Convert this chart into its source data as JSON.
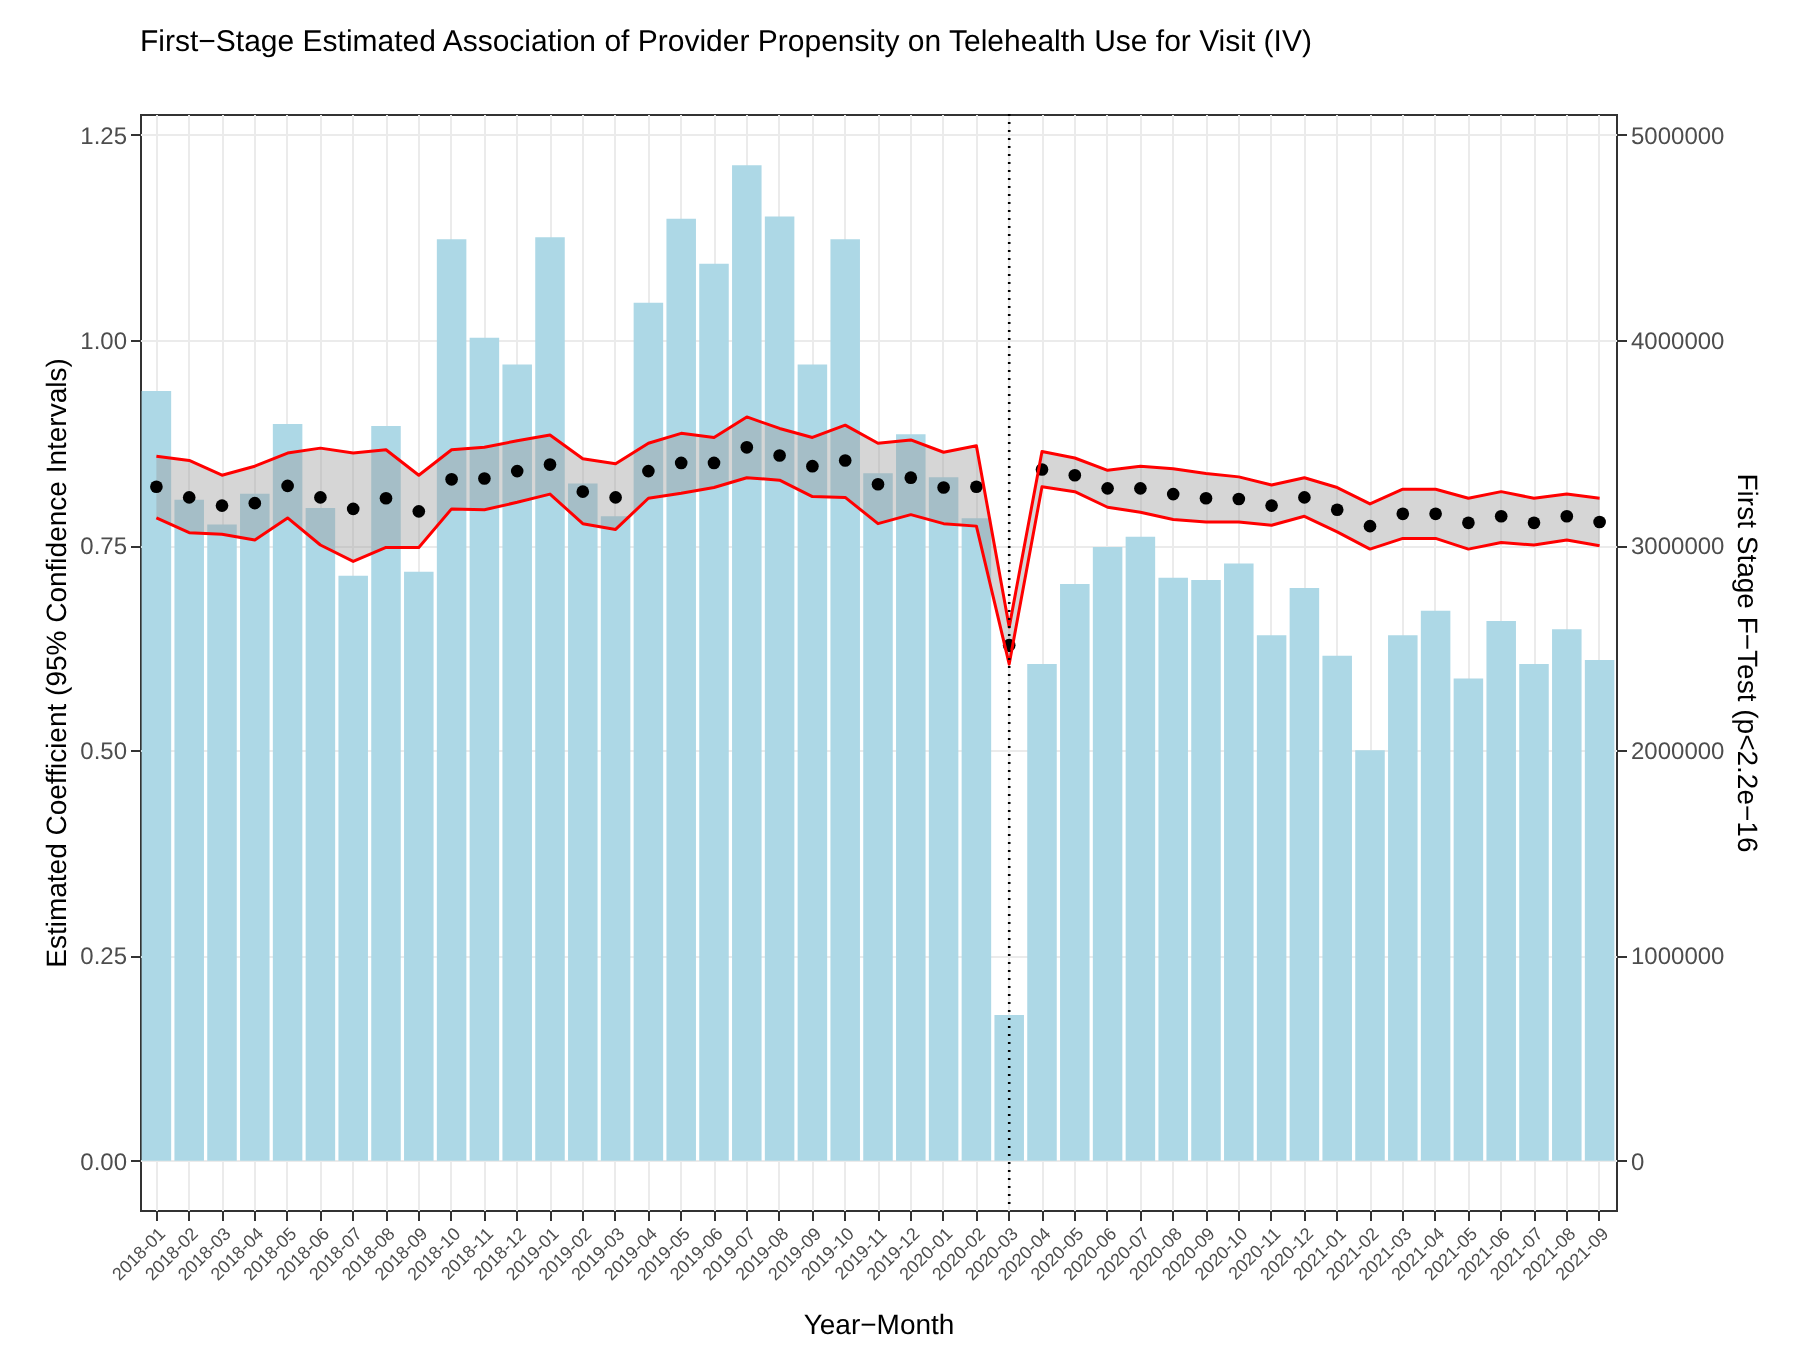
{
  "chart_data": {
    "type": "bar",
    "title": "First−Stage Estimated Association of Provider Propensity on Telehealth Use for Visit (IV)",
    "xlabel": "Year−Month",
    "ylabel": "Estimated Coefficient (95% Confidence Intervals)",
    "y2label": "First Stage F−Test (p<2.2e−16",
    "categories": [
      "2018-01",
      "2018-02",
      "2018-03",
      "2018-04",
      "2018-05",
      "2018-06",
      "2018-07",
      "2018-08",
      "2018-09",
      "2018-10",
      "2018-11",
      "2018-12",
      "2019-01",
      "2019-02",
      "2019-03",
      "2019-04",
      "2019-05",
      "2019-06",
      "2019-07",
      "2019-08",
      "2019-09",
      "2019-10",
      "2019-11",
      "2019-12",
      "2020-01",
      "2020-02",
      "2020-03",
      "2020-04",
      "2020-05",
      "2020-06",
      "2020-07",
      "2020-08",
      "2020-09",
      "2020-10",
      "2020-11",
      "2020-12",
      "2021-01",
      "2021-02",
      "2021-03",
      "2021-04",
      "2021-05",
      "2021-06",
      "2021-07",
      "2021-08",
      "2021-09"
    ],
    "series": [
      {
        "axis": "y2",
        "color": "#add8e6",
        "values": [
          3750000,
          3220000,
          3100000,
          3250000,
          3590000,
          3180000,
          2850000,
          3580000,
          2870000,
          4490000,
          4010000,
          3880000,
          4500000,
          3300000,
          3140000,
          4180000,
          4590000,
          4370000,
          4850000,
          4600000,
          3880000,
          4490000,
          3350000,
          3540000,
          3330000,
          3130000,
          710000,
          2420000,
          2810000,
          2990000,
          3040000,
          2840000,
          2830000,
          2910000,
          2560000,
          2790000,
          2460000,
          2000000,
          2560000,
          2680000,
          2350000,
          2630000,
          2420000,
          2590000,
          2440000
        ]
      },
      {
        "type": "line",
        "color": "#ff0000",
        "marker": "none",
        "values": [
          0.783,
          0.765,
          0.763,
          0.756,
          0.783,
          0.75,
          0.73,
          0.747,
          0.747,
          0.794,
          0.793,
          0.802,
          0.812,
          0.776,
          0.769,
          0.807,
          0.813,
          0.82,
          0.832,
          0.829,
          0.809,
          0.808,
          0.776,
          0.787,
          0.776,
          0.773,
          0.605,
          0.821,
          0.815,
          0.796,
          0.79,
          0.781,
          0.778,
          0.778,
          0.774,
          0.785,
          0.766,
          0.745,
          0.758,
          0.758,
          0.745,
          0.753,
          0.75,
          0.756,
          0.749
        ]
      },
      {
        "type": "line",
        "color": "#ff0000",
        "marker": "none",
        "values": [
          0.858,
          0.853,
          0.835,
          0.846,
          0.862,
          0.868,
          0.862,
          0.866,
          0.835,
          0.866,
          0.869,
          0.877,
          0.884,
          0.855,
          0.849,
          0.874,
          0.886,
          0.881,
          0.906,
          0.892,
          0.881,
          0.896,
          0.874,
          0.878,
          0.863,
          0.871,
          0.65,
          0.864,
          0.856,
          0.841,
          0.846,
          0.843,
          0.837,
          0.833,
          0.823,
          0.832,
          0.82,
          0.8,
          0.818,
          0.818,
          0.807,
          0.815,
          0.807,
          0.812,
          0.807
        ]
      },
      {
        "type": "scatter",
        "color": "#000000",
        "values": [
          0.821,
          0.808,
          0.798,
          0.801,
          0.822,
          0.808,
          0.794,
          0.807,
          0.791,
          0.83,
          0.831,
          0.84,
          0.848,
          0.815,
          0.808,
          0.84,
          0.85,
          0.85,
          0.869,
          0.859,
          0.846,
          0.853,
          0.824,
          0.832,
          0.82,
          0.821,
          0.628,
          0.842,
          0.835,
          0.819,
          0.819,
          0.812,
          0.807,
          0.806,
          0.798,
          0.808,
          0.793,
          0.773,
          0.788,
          0.788,
          0.777,
          0.785,
          0.777,
          0.785,
          0.778
        ],
        "lower": [
          0.783,
          0.765,
          0.763,
          0.756,
          0.783,
          0.75,
          0.73,
          0.747,
          0.747,
          0.794,
          0.793,
          0.802,
          0.812,
          0.776,
          0.769,
          0.807,
          0.813,
          0.82,
          0.832,
          0.829,
          0.809,
          0.808,
          0.776,
          0.787,
          0.776,
          0.773,
          0.605,
          0.821,
          0.815,
          0.796,
          0.79,
          0.781,
          0.778,
          0.778,
          0.774,
          0.785,
          0.766,
          0.745,
          0.758,
          0.758,
          0.745,
          0.753,
          0.75,
          0.756,
          0.749
        ],
        "upper": [
          0.858,
          0.853,
          0.835,
          0.846,
          0.862,
          0.868,
          0.862,
          0.866,
          0.835,
          0.866,
          0.869,
          0.877,
          0.884,
          0.855,
          0.849,
          0.874,
          0.886,
          0.881,
          0.906,
          0.892,
          0.881,
          0.896,
          0.874,
          0.878,
          0.863,
          0.871,
          0.65,
          0.864,
          0.856,
          0.841,
          0.846,
          0.843,
          0.837,
          0.833,
          0.823,
          0.832,
          0.82,
          0.8,
          0.818,
          0.818,
          0.807,
          0.815,
          0.807,
          0.812,
          0.807
        ]
      }
    ],
    "ylim": [
      -0.06,
      1.275
    ],
    "yticks": [
      {
        "value": 0,
        "label": "0.00"
      },
      {
        "value": 0.25,
        "label": "0.25"
      },
      {
        "value": 0.5,
        "label": "0.50"
      },
      {
        "value": 0.75,
        "label": "0.75"
      },
      {
        "value": 1,
        "label": "1.00"
      },
      {
        "value": 1.25,
        "label": "1.25"
      }
    ],
    "y2lim": [
      -240000,
      5100000
    ],
    "y2ticks": [
      0,
      1000000,
      2000000,
      3000000,
      4000000,
      5000000
    ],
    "ref_lines": [
      {
        "axis": "x",
        "value": "2020-03",
        "line_style": "dotted",
        "color": "#000000"
      }
    ],
    "grid": true,
    "marker": "circle"
  }
}
